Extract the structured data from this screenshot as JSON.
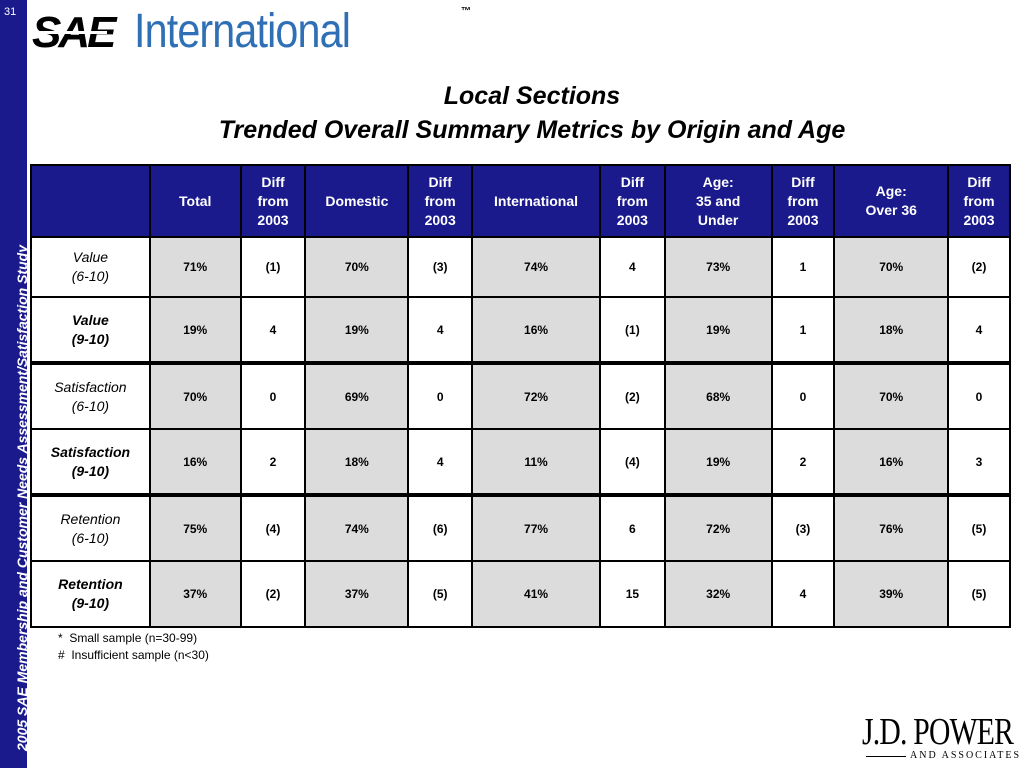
{
  "slide_number": "31",
  "side_caption": "2005 SAE Membership and Customer Needs Assessment/Satisfaction Study",
  "logo": {
    "sae_mark": "SAE",
    "sae_word": "International",
    "trademark": "™",
    "jdp_line1": "J.D. POWER",
    "jdp_line2": "AND ASSOCIATES"
  },
  "title": {
    "line1": "Local Sections",
    "line2": "Trended Overall Summary Metrics by Origin and Age"
  },
  "table": {
    "headers": [
      "",
      "Total",
      "Diff\nfrom\n2003",
      "Domestic",
      "Diff\nfrom\n2003",
      "International",
      "Diff\nfrom\n2003",
      "Age:\n35 and\nUnder",
      "Diff\nfrom\n2003",
      "Age:\nOver 36",
      "Diff\nfrom\n2003"
    ],
    "rows": [
      {
        "label": "Value\n(6-10)",
        "cells": [
          "71%",
          "(1)",
          "70%",
          "(3)",
          "74%",
          "4",
          "73%",
          "1",
          "70%",
          "(2)"
        ]
      },
      {
        "label": "Value\n(9-10)",
        "cells": [
          "19%",
          "4",
          "19%",
          "4",
          "16%",
          "(1)",
          "19%",
          "1",
          "18%",
          "4"
        ]
      },
      {
        "label": "Satisfaction\n(6-10)",
        "cells": [
          "70%",
          "0",
          "69%",
          "0",
          "72%",
          "(2)",
          "68%",
          "0",
          "70%",
          "0"
        ]
      },
      {
        "label": "Satisfaction\n(9-10)",
        "cells": [
          "16%",
          "2",
          "18%",
          "4",
          "11%",
          "(4)",
          "19%",
          "2",
          "16%",
          "3"
        ]
      },
      {
        "label": "Retention\n(6-10)",
        "cells": [
          "75%",
          "(4)",
          "74%",
          "(6)",
          "77%",
          "6",
          "72%",
          "(3)",
          "76%",
          "(5)"
        ]
      },
      {
        "label": "Retention\n(9-10)",
        "cells": [
          "37%",
          "(2)",
          "37%",
          "(5)",
          "41%",
          "15",
          "32%",
          "4",
          "39%",
          "(5)"
        ]
      }
    ]
  },
  "notes": [
    "*  Small sample (n=30-99)",
    "#  Insufficient sample (n<30)"
  ],
  "colors": {
    "band": "#1a1a8c",
    "header_bg": "#1a1a8c",
    "shade": "#dcdcdc",
    "sae_blue": "#2e6fb6"
  }
}
